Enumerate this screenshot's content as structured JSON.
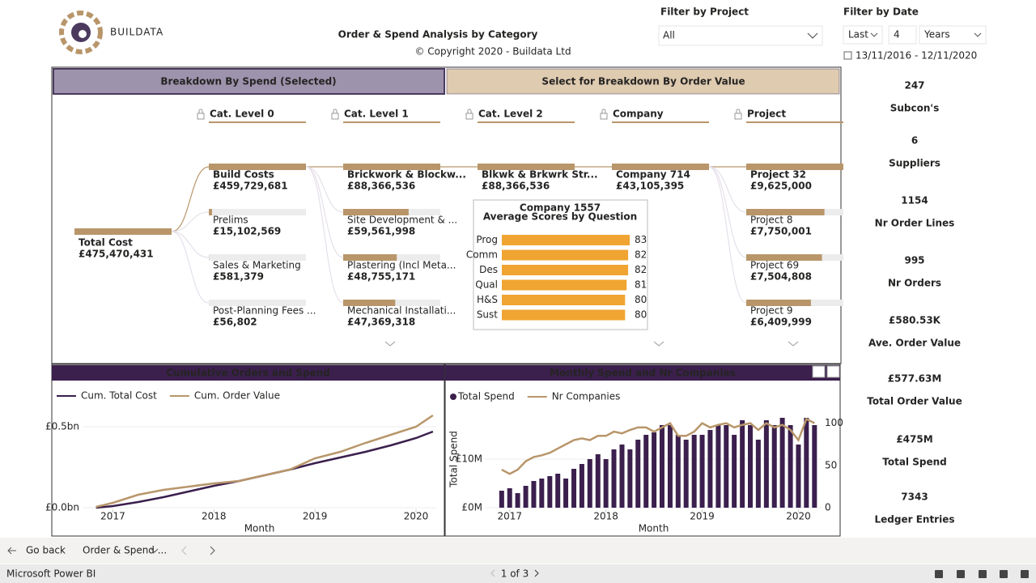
{
  "header": {
    "logo": "BUILDATA",
    "title": "Order & Spend Analysis by Category",
    "copyright": "© Copyright 2020 - Buildata Ltd"
  },
  "filters": {
    "project_label": "Filter by Project",
    "project_value": "All",
    "date_label": "Filter by Date",
    "date_mode": "Last",
    "date_count": "4",
    "date_unit": "Years",
    "date_range": "13/11/2016 - 12/11/2020"
  },
  "tabs": [
    "Breakdown By Spend (Selected)",
    "Select for Breakdown By Order Value"
  ],
  "tree": {
    "levels": [
      "Cat. Level 0",
      "Cat. Level 1",
      "Cat. Level 2",
      "Company",
      "Project"
    ],
    "root": {
      "name": "Total Cost",
      "value": 475470431,
      "label": "£475,470,431"
    },
    "columns": [
      [
        {
          "name": "Build Costs",
          "value": 459729681,
          "label": "£459,729,681"
        },
        {
          "name": "Prelims",
          "value": 15102569,
          "label": "£15,102,569"
        },
        {
          "name": "Sales & Marketing",
          "value": 581379,
          "label": "£581,379"
        },
        {
          "name": "Post-Planning Fees ...",
          "value": 56802,
          "label": "£56,802"
        }
      ],
      [
        {
          "name": "Brickwork & Blockw...",
          "value": 88366536,
          "label": "£88,366,536"
        },
        {
          "name": "Site Development & ...",
          "value": 59561998,
          "label": "£59,561,998"
        },
        {
          "name": "Plastering (Incl Meta...",
          "value": 48755171,
          "label": "£48,755,171"
        },
        {
          "name": "Mechanical Installati...",
          "value": 47369318,
          "label": "£47,369,318"
        }
      ],
      [
        {
          "name": "Blkwk & Brkwrk Str...",
          "value": 88366536,
          "label": "£88,366,536"
        }
      ],
      [
        {
          "name": "Company 714",
          "value": 43105395,
          "label": "£43,105,395"
        }
      ],
      [
        {
          "name": "Project 32",
          "value": 9625000,
          "label": "£9,625,000"
        },
        {
          "name": "Project 8",
          "value": 7750001,
          "label": "£7,750,001"
        },
        {
          "name": "Project 69",
          "value": 7504808,
          "label": "£7,504,808"
        },
        {
          "name": "Project 9",
          "value": 6409999,
          "label": "£6,409,999"
        }
      ]
    ]
  },
  "kpis": [
    {
      "value": "247",
      "label": "Subcon's"
    },
    {
      "value": "6",
      "label": "Suppliers"
    },
    {
      "value": "1154",
      "label": "Nr Order Lines"
    },
    {
      "value": "995",
      "label": "Nr Orders"
    },
    {
      "value": "£580.53K",
      "label": "Ave. Order Value"
    },
    {
      "value": "£577.63M",
      "label": "Total Order Value"
    },
    {
      "value": "£475M",
      "label": "Total Spend"
    },
    {
      "value": "7343",
      "label": "Ledger Entries"
    }
  ],
  "chart_data": [
    {
      "type": "bar",
      "title": "Company 1557",
      "subtitle": "Average Scores by Question",
      "categories": [
        "Prog",
        "Comm",
        "Des",
        "Qual",
        "H&S",
        "Sust"
      ],
      "values": [
        83,
        82,
        82,
        81,
        80,
        80
      ],
      "color": "#f0a431"
    },
    {
      "type": "line",
      "title": "Cumulative Orders and Spend",
      "x_label": "Month",
      "x": [
        2016.833,
        2017,
        2017.25,
        2017.5,
        2017.75,
        2018,
        2018.25,
        2018.5,
        2018.75,
        2019,
        2019.25,
        2019.5,
        2019.75,
        2020,
        2020.167
      ],
      "xlim": [
        2016.7,
        2020.2
      ],
      "xticks": [
        2017,
        2018,
        2019,
        2020
      ],
      "ylim": [
        0,
        0.6
      ],
      "yticks": [
        {
          "value": 0,
          "label": "£0.0bn"
        },
        {
          "value": 0.5,
          "label": "£0.5bn"
        }
      ],
      "series": [
        {
          "name": "Cum. Total Cost",
          "color": "#3b1f4d",
          "values": [
            0,
            0.01,
            0.035,
            0.065,
            0.1,
            0.135,
            0.165,
            0.2,
            0.235,
            0.275,
            0.31,
            0.345,
            0.385,
            0.43,
            0.47
          ]
        },
        {
          "name": "Cum. Order Value",
          "color": "#b8966a",
          "values": [
            0.005,
            0.03,
            0.08,
            0.11,
            0.13,
            0.15,
            0.165,
            0.2,
            0.235,
            0.305,
            0.345,
            0.4,
            0.45,
            0.5,
            0.57
          ]
        }
      ]
    },
    {
      "type": "combo",
      "title": "Monthly Spend and Nr Companies",
      "x_label": "Month",
      "y_label": "Total Spend",
      "x": [
        2016.917,
        2017,
        2017.083,
        2017.167,
        2017.25,
        2017.333,
        2017.417,
        2017.5,
        2017.583,
        2017.667,
        2017.75,
        2017.833,
        2017.917,
        2018,
        2018.083,
        2018.167,
        2018.25,
        2018.333,
        2018.417,
        2018.5,
        2018.583,
        2018.667,
        2018.75,
        2018.833,
        2018.917,
        2019,
        2019.083,
        2019.167,
        2019.25,
        2019.333,
        2019.417,
        2019.5,
        2019.583,
        2019.667,
        2019.75,
        2019.833,
        2019.917,
        2020,
        2020.083,
        2020.167
      ],
      "xlim": [
        2016.75,
        2020.24
      ],
      "xticks": [
        2017,
        2018,
        2019,
        2020
      ],
      "ylim": [
        0,
        20
      ],
      "yticks": [
        {
          "value": 0,
          "label": "£0M"
        },
        {
          "value": 10,
          "label": "£10M"
        }
      ],
      "y2lim": [
        0,
        115
      ],
      "y2ticks": [
        0,
        50,
        100
      ],
      "series": [
        {
          "name": "Total Spend",
          "color": "#3b1f4d",
          "kind": "bar",
          "values": [
            3.5,
            4,
            3,
            4.5,
            5.5,
            6,
            6.5,
            7,
            6,
            8,
            9,
            10,
            11,
            10,
            12,
            13,
            12,
            14,
            15,
            15.5,
            17,
            17,
            15,
            14,
            15,
            15,
            16,
            17,
            17,
            15,
            18,
            17,
            14,
            18,
            17,
            18.5,
            17,
            13,
            18.5,
            17
          ]
        },
        {
          "name": "Nr Companies",
          "color": "#b8966a",
          "kind": "line",
          "axis": "y2",
          "values": [
            45,
            40,
            45,
            55,
            60,
            62,
            65,
            70,
            75,
            80,
            82,
            80,
            85,
            85,
            90,
            88,
            92,
            95,
            95,
            90,
            95,
            100,
            85,
            85,
            90,
            100,
            95,
            98,
            100,
            95,
            98,
            100,
            92,
            100,
            95,
            98,
            92,
            80,
            105,
            100
          ]
        }
      ]
    }
  ],
  "footer": {
    "back": "Go back",
    "page_tab": "Order & Spend ...",
    "app": "Microsoft Power BI",
    "pager": "1 of 3"
  }
}
